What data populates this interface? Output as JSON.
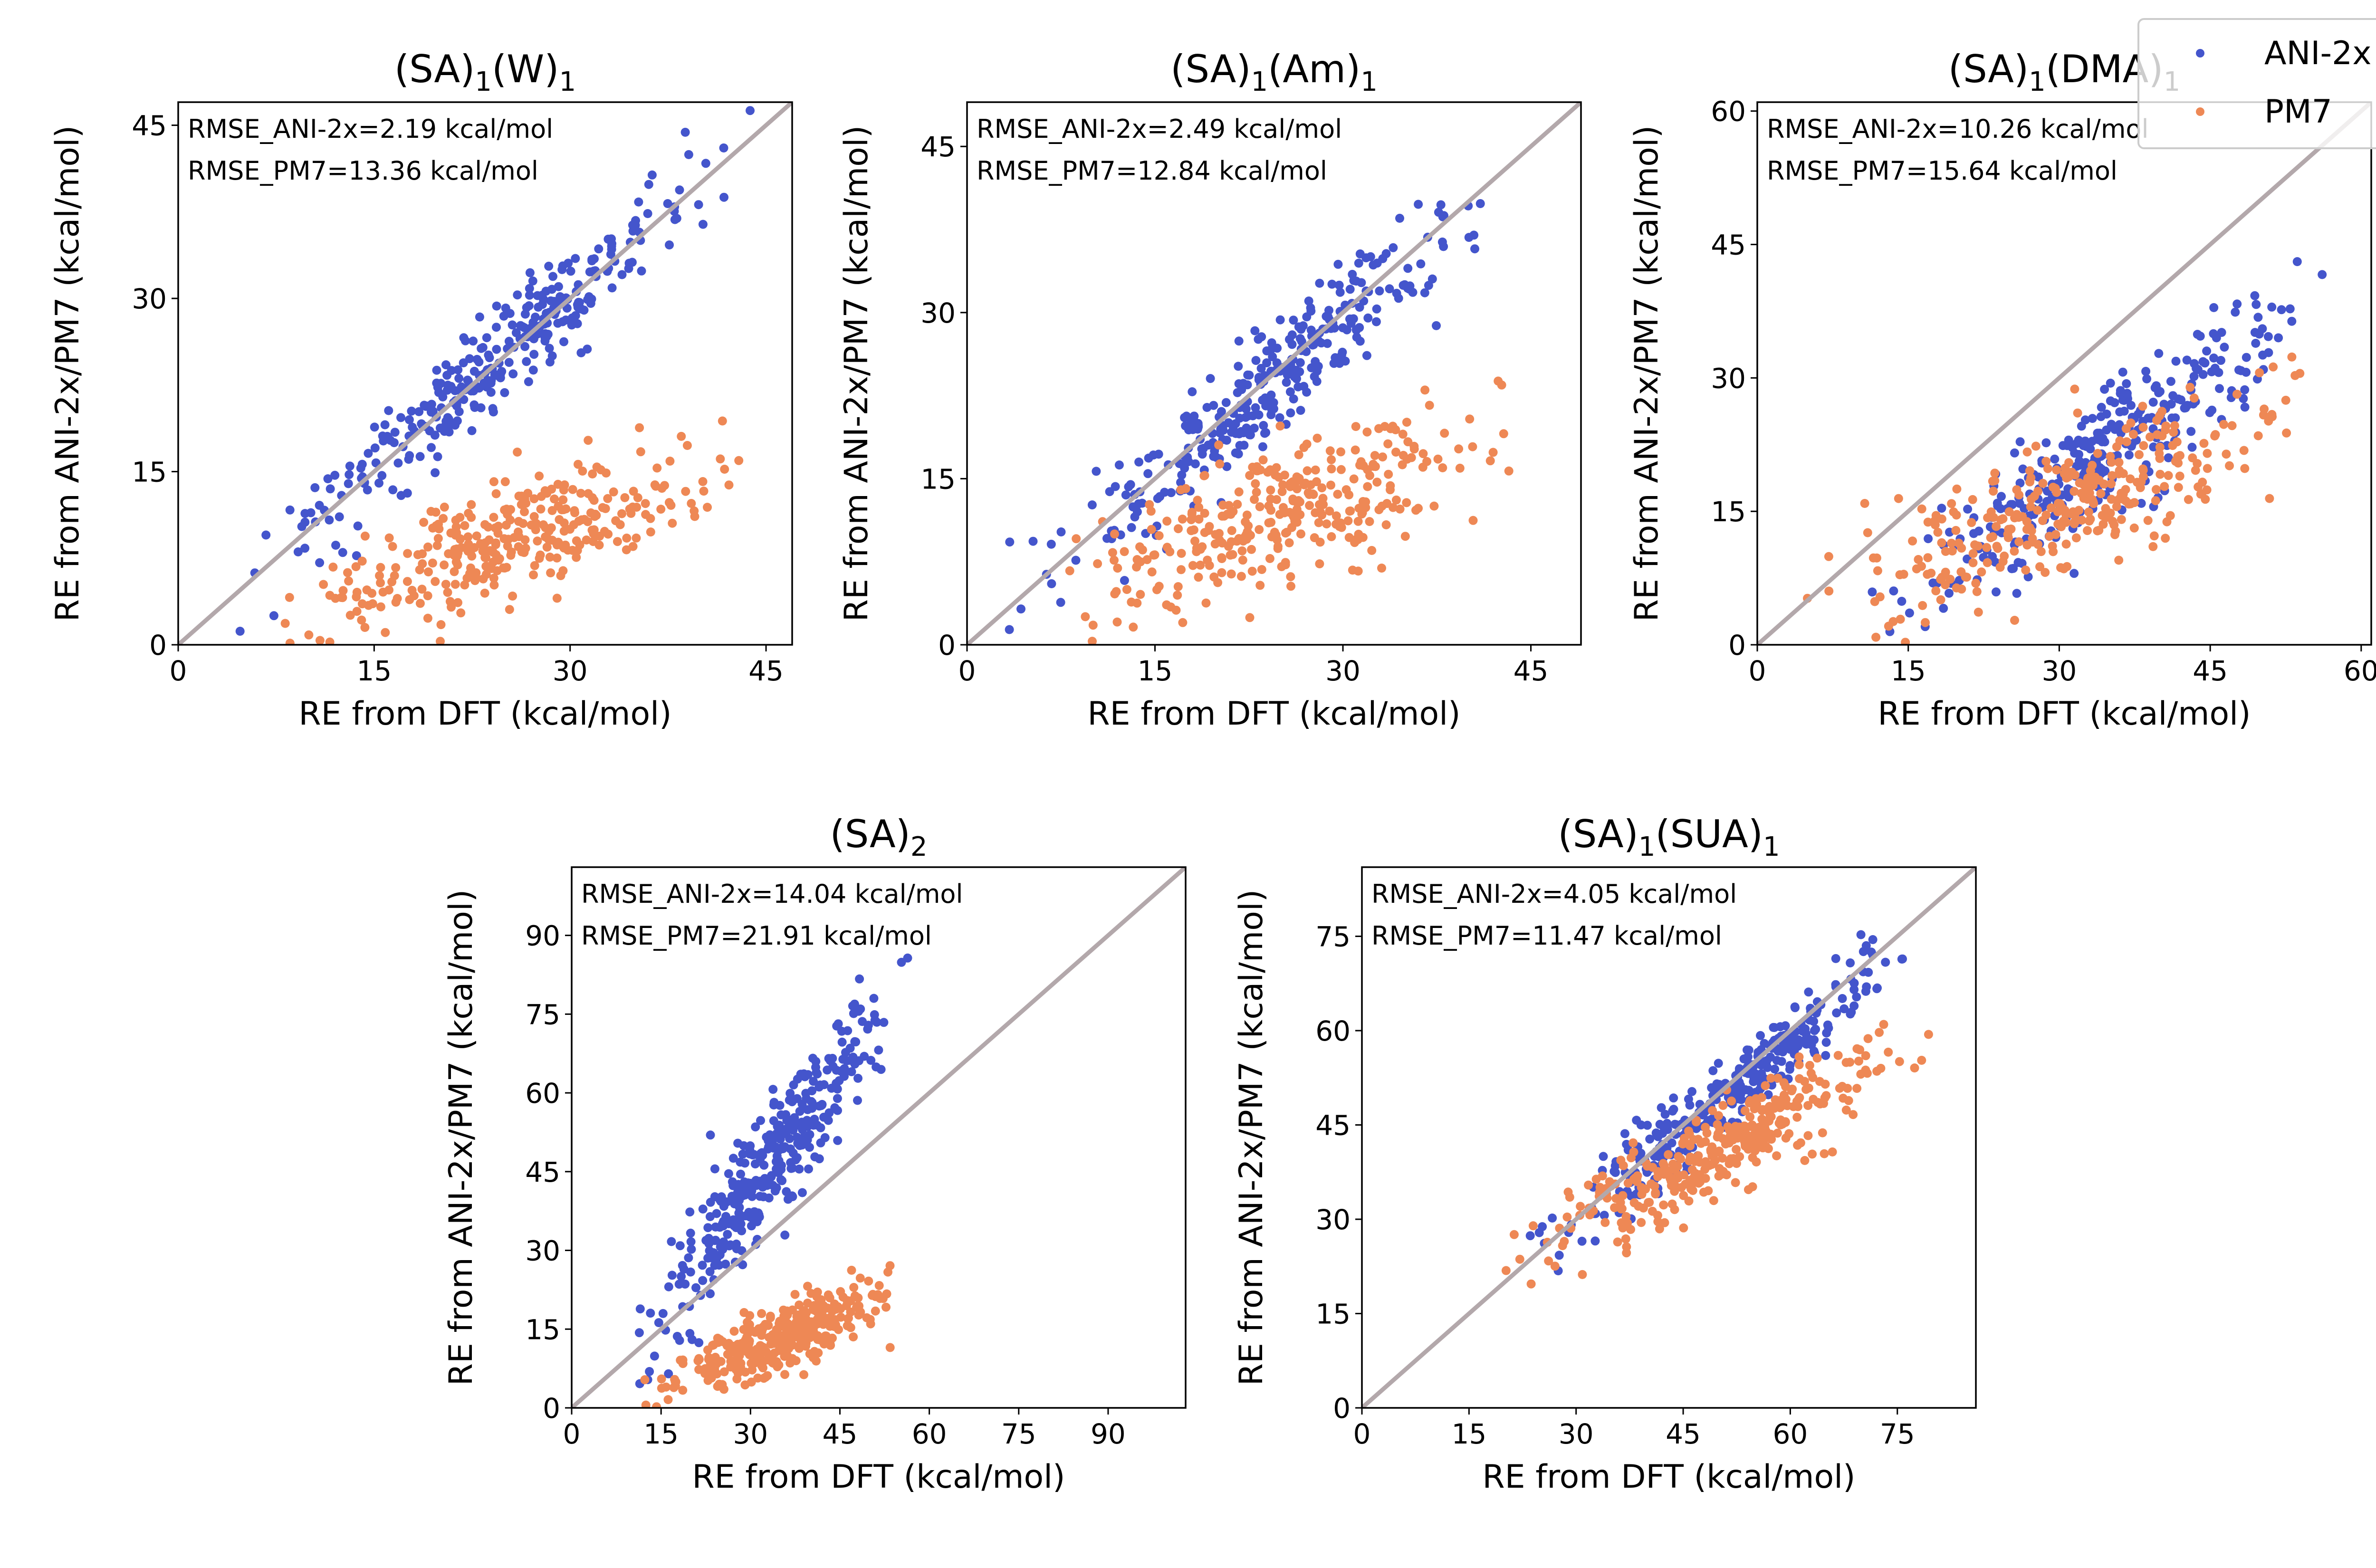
{
  "legend": {
    "items": [
      {
        "label": "ANI-2x",
        "color": "#4455cc"
      },
      {
        "label": "PM7",
        "color": "#ee8855"
      }
    ],
    "placement": "top-right"
  },
  "chart_data": [
    {
      "type": "scatter",
      "title": "(SA)₁(W)₁",
      "xlabel": "RE from DFT (kcal/mol)",
      "ylabel": "RE from ANI-2x/PM7 (kcal/mol)",
      "xlim": [
        0,
        47
      ],
      "ylim": [
        0,
        47
      ],
      "xticks": [
        0,
        15,
        30,
        45
      ],
      "yticks": [
        0,
        15,
        30,
        45
      ],
      "annotations": [
        "RMSE_ANI-2x=2.19 kcal/mol",
        "RMSE_PM7=13.36 kcal/mol"
      ],
      "reference_line": "y = x",
      "series": [
        {
          "name": "ANI-2x",
          "color": "#4455cc",
          "slope": 1.0,
          "intercept": 0.3,
          "noise": 2.2,
          "count": 320,
          "x_range": [
            2,
            46
          ]
        },
        {
          "name": "PM7",
          "color": "#ee8855",
          "slope": 0.38,
          "intercept": -0.8,
          "noise": 2.4,
          "count": 320,
          "x_range": [
            5,
            46
          ]
        }
      ]
    },
    {
      "type": "scatter",
      "title": "(SA)₁(Am)₁",
      "xlabel": "RE from DFT (kcal/mol)",
      "ylabel": "RE from ANI-2x/PM7 (kcal/mol)",
      "xlim": [
        0,
        49
      ],
      "ylim": [
        0,
        49
      ],
      "xticks": [
        0,
        15,
        30,
        45
      ],
      "yticks": [
        0,
        15,
        30,
        45
      ],
      "annotations": [
        "RMSE_ANI-2x=2.49 kcal/mol",
        "RMSE_PM7=12.84 kcal/mol"
      ],
      "reference_line": "y = x",
      "series": [
        {
          "name": "ANI-2x",
          "color": "#4455cc",
          "slope": 0.97,
          "intercept": 0.0,
          "noise": 2.4,
          "count": 320,
          "x_range": [
            1,
            46
          ]
        },
        {
          "name": "PM7",
          "color": "#ee8855",
          "slope": 0.42,
          "intercept": 1.5,
          "noise": 3.2,
          "count": 320,
          "x_range": [
            3,
            48
          ]
        }
      ]
    },
    {
      "type": "scatter",
      "title": "(SA)₁(DMA)₁",
      "xlabel": "RE from DFT (kcal/mol)",
      "ylabel": "RE from ANI-2x/PM7 (kcal/mol)",
      "xlim": [
        0,
        61
      ],
      "ylim": [
        0,
        61
      ],
      "xticks": [
        0,
        15,
        30,
        45,
        60
      ],
      "yticks": [
        0,
        15,
        30,
        45,
        60
      ],
      "annotations": [
        "RMSE_ANI-2x=10.26 kcal/mol",
        "RMSE_PM7=15.64 kcal/mol"
      ],
      "reference_line": "y = x",
      "series": [
        {
          "name": "ANI-2x",
          "color": "#4455cc",
          "slope": 0.85,
          "intercept": -8.0,
          "noise": 3.4,
          "count": 320,
          "x_range": [
            8,
            60
          ]
        },
        {
          "name": "PM7",
          "color": "#ee8855",
          "slope": 0.45,
          "intercept": 2.0,
          "noise": 3.5,
          "count": 320,
          "x_range": [
            3,
            60
          ]
        }
      ]
    },
    {
      "type": "scatter",
      "title": "(SA)₂",
      "xlabel": "RE from DFT (kcal/mol)",
      "ylabel": "RE from ANI-2x/PM7 (kcal/mol)",
      "xlim": [
        0,
        103
      ],
      "ylim": [
        0,
        103
      ],
      "xticks": [
        0,
        15,
        30,
        45,
        60,
        75,
        90
      ],
      "yticks": [
        0,
        15,
        30,
        45,
        60,
        75,
        90
      ],
      "annotations": [
        "RMSE_ANI-2x=14.04 kcal/mol",
        "RMSE_PM7=21.91 kcal/mol"
      ],
      "reference_line": "y = x",
      "series": [
        {
          "name": "ANI-2x",
          "color": "#4455cc",
          "slope": 1.55,
          "intercept": -5.0,
          "noise": 6.0,
          "count": 360,
          "x_range": [
            8,
            60
          ]
        },
        {
          "name": "PM7",
          "color": "#ee8855",
          "slope": 0.43,
          "intercept": -2.0,
          "noise": 3.0,
          "count": 360,
          "x_range": [
            8,
            61
          ]
        }
      ]
    },
    {
      "type": "scatter",
      "title": "(SA)₁(SUA)₁",
      "xlabel": "RE from DFT (kcal/mol)",
      "ylabel": "RE from ANI-2x/PM7 (kcal/mol)",
      "xlim": [
        0,
        86
      ],
      "ylim": [
        0,
        86
      ],
      "xticks": [
        0,
        15,
        30,
        45,
        60,
        75
      ],
      "yticks": [
        0,
        15,
        30,
        45,
        60,
        75
      ],
      "annotations": [
        "RMSE_ANI-2x=4.05 kcal/mol",
        "RMSE_PM7=11.47 kcal/mol"
      ],
      "reference_line": "y = x",
      "series": [
        {
          "name": "ANI-2x",
          "color": "#4455cc",
          "slope": 0.93,
          "intercept": 2.0,
          "noise": 3.0,
          "count": 320,
          "x_range": [
            17,
            85
          ]
        },
        {
          "name": "PM7",
          "color": "#ee8855",
          "slope": 0.6,
          "intercept": 11.0,
          "noise": 3.6,
          "count": 360,
          "x_range": [
            17,
            85
          ]
        }
      ]
    }
  ]
}
